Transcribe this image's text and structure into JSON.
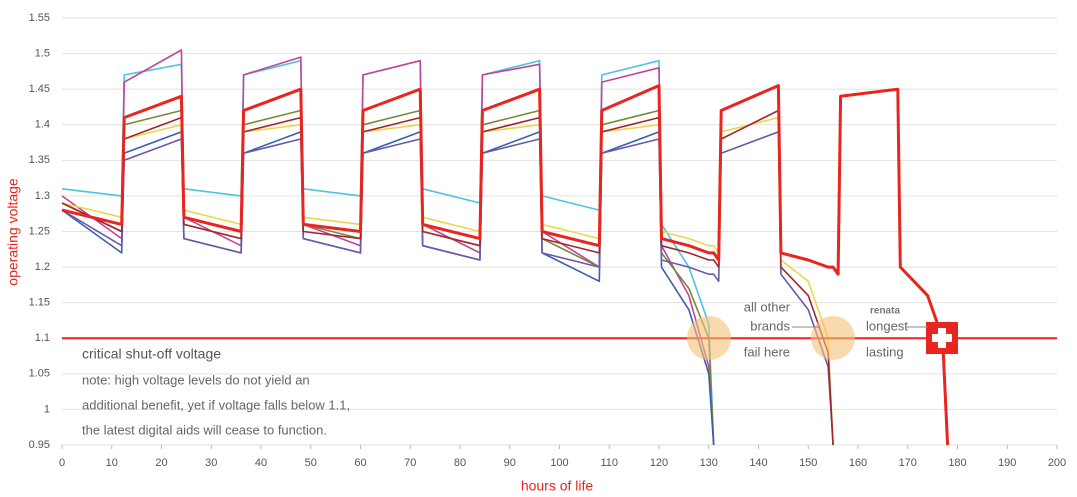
{
  "chart_data": {
    "type": "line",
    "x_label": "hours of life",
    "y_label": "operating voltage",
    "x": [
      0,
      12,
      12.5,
      24,
      24.5,
      36,
      36.5,
      48,
      48.5,
      60,
      60.5,
      72,
      72.5,
      84,
      84.5,
      96,
      96.5,
      108,
      108.5,
      120,
      120.5,
      126,
      130,
      131,
      132,
      132.5,
      144,
      144.5,
      150,
      154,
      155,
      156,
      156.5,
      168,
      168.5,
      174,
      177,
      178
    ],
    "series": [
      {
        "color": "#4fc3df",
        "values": [
          1.31,
          1.3,
          1.47,
          1.485,
          1.31,
          1.3,
          1.47,
          1.49,
          1.31,
          1.3,
          1.47,
          1.49,
          1.31,
          1.29,
          1.47,
          1.49,
          1.3,
          1.28,
          1.47,
          1.49,
          1.26,
          1.2,
          1.12,
          0.95,
          null,
          null,
          null,
          null,
          null,
          null,
          null,
          null,
          null,
          null,
          null,
          null,
          null,
          null
        ]
      },
      {
        "color": "#c0459a",
        "values": [
          1.3,
          1.24,
          1.46,
          1.505,
          1.27,
          1.23,
          1.47,
          1.495,
          1.26,
          1.23,
          1.47,
          1.49,
          1.26,
          1.22,
          1.47,
          1.485,
          1.25,
          1.2,
          1.46,
          1.48,
          1.23,
          1.16,
          1.06,
          0.95,
          null,
          null,
          null,
          null,
          null,
          null,
          null,
          null,
          null,
          null,
          null,
          null,
          null,
          null
        ]
      },
      {
        "color": "#7a8a3a",
        "values": [
          1.29,
          1.25,
          1.4,
          1.42,
          1.26,
          1.24,
          1.4,
          1.42,
          1.26,
          1.24,
          1.4,
          1.42,
          1.25,
          1.23,
          1.4,
          1.42,
          1.24,
          1.2,
          1.4,
          1.42,
          1.22,
          1.17,
          1.1,
          0.95,
          null,
          null,
          null,
          null,
          null,
          null,
          null,
          null,
          null,
          null,
          null,
          null,
          null,
          null
        ]
      },
      {
        "color": "#3a5fb0",
        "values": [
          1.28,
          1.22,
          1.36,
          1.39,
          1.24,
          1.22,
          1.36,
          1.39,
          1.24,
          1.22,
          1.36,
          1.39,
          1.23,
          1.21,
          1.36,
          1.39,
          1.22,
          1.18,
          1.36,
          1.39,
          1.2,
          1.14,
          1.05,
          0.95,
          null,
          null,
          null,
          null,
          null,
          null,
          null,
          null,
          null,
          null,
          null,
          null,
          null,
          null
        ]
      },
      {
        "color": "#e8d84a",
        "values": [
          1.29,
          1.27,
          1.38,
          1.4,
          1.28,
          1.26,
          1.39,
          1.4,
          1.27,
          1.26,
          1.39,
          1.4,
          1.27,
          1.25,
          1.39,
          1.4,
          1.26,
          1.24,
          1.39,
          1.4,
          1.25,
          1.24,
          1.23,
          1.23,
          1.22,
          1.39,
          1.41,
          1.21,
          1.18,
          1.1,
          0.95,
          null,
          null,
          null,
          null,
          null,
          null,
          null
        ]
      },
      {
        "color": "#6a5aa8",
        "values": [
          1.28,
          1.23,
          1.35,
          1.38,
          1.24,
          1.22,
          1.36,
          1.38,
          1.24,
          1.22,
          1.36,
          1.38,
          1.23,
          1.21,
          1.36,
          1.38,
          1.22,
          1.2,
          1.36,
          1.38,
          1.21,
          1.2,
          1.19,
          1.19,
          1.18,
          1.36,
          1.39,
          1.19,
          1.14,
          1.06,
          0.95,
          null,
          null,
          null,
          null,
          null,
          null,
          null
        ]
      },
      {
        "color": "#a0282a",
        "values": [
          1.29,
          1.25,
          1.38,
          1.41,
          1.26,
          1.24,
          1.39,
          1.41,
          1.25,
          1.24,
          1.39,
          1.41,
          1.25,
          1.23,
          1.39,
          1.41,
          1.24,
          1.22,
          1.39,
          1.41,
          1.23,
          1.22,
          1.21,
          1.21,
          1.2,
          1.38,
          1.42,
          1.2,
          1.16,
          1.08,
          0.95,
          null,
          null,
          null,
          null,
          null,
          null,
          null
        ]
      },
      {
        "color": "#e8251e",
        "values": [
          1.28,
          1.26,
          1.41,
          1.44,
          1.27,
          1.25,
          1.42,
          1.45,
          1.26,
          1.25,
          1.42,
          1.45,
          1.26,
          1.24,
          1.42,
          1.45,
          1.25,
          1.23,
          1.42,
          1.455,
          1.24,
          1.23,
          1.22,
          1.22,
          1.21,
          1.42,
          1.455,
          1.22,
          1.21,
          1.2,
          1.2,
          1.19,
          1.44,
          1.45,
          1.2,
          1.16,
          1.1,
          0.95
        ]
      }
    ],
    "xlim": [
      0,
      200
    ],
    "xticks": [
      0,
      10,
      20,
      30,
      40,
      50,
      60,
      70,
      80,
      90,
      100,
      110,
      120,
      130,
      140,
      150,
      160,
      170,
      180,
      190,
      200
    ],
    "ylim": [
      0.95,
      1.55
    ],
    "yticks": [
      0.95,
      1,
      1.05,
      1.1,
      1.15,
      1.2,
      1.25,
      1.3,
      1.35,
      1.4,
      1.45,
      1.5,
      1.55
    ],
    "grid": true,
    "threshold": {
      "value": 1.1,
      "label": "critical shut-off voltage",
      "color": "#e8251e"
    },
    "note": [
      "note: high voltage levels do not yield an",
      "additional benefit, yet if voltage falls below 1.1,",
      "the latest digital aids will cease to function."
    ],
    "others_label": [
      "all other",
      "brands",
      "fail here"
    ],
    "renata_label": {
      "brand": "renata",
      "lines": [
        "longest",
        "lasting"
      ]
    }
  }
}
